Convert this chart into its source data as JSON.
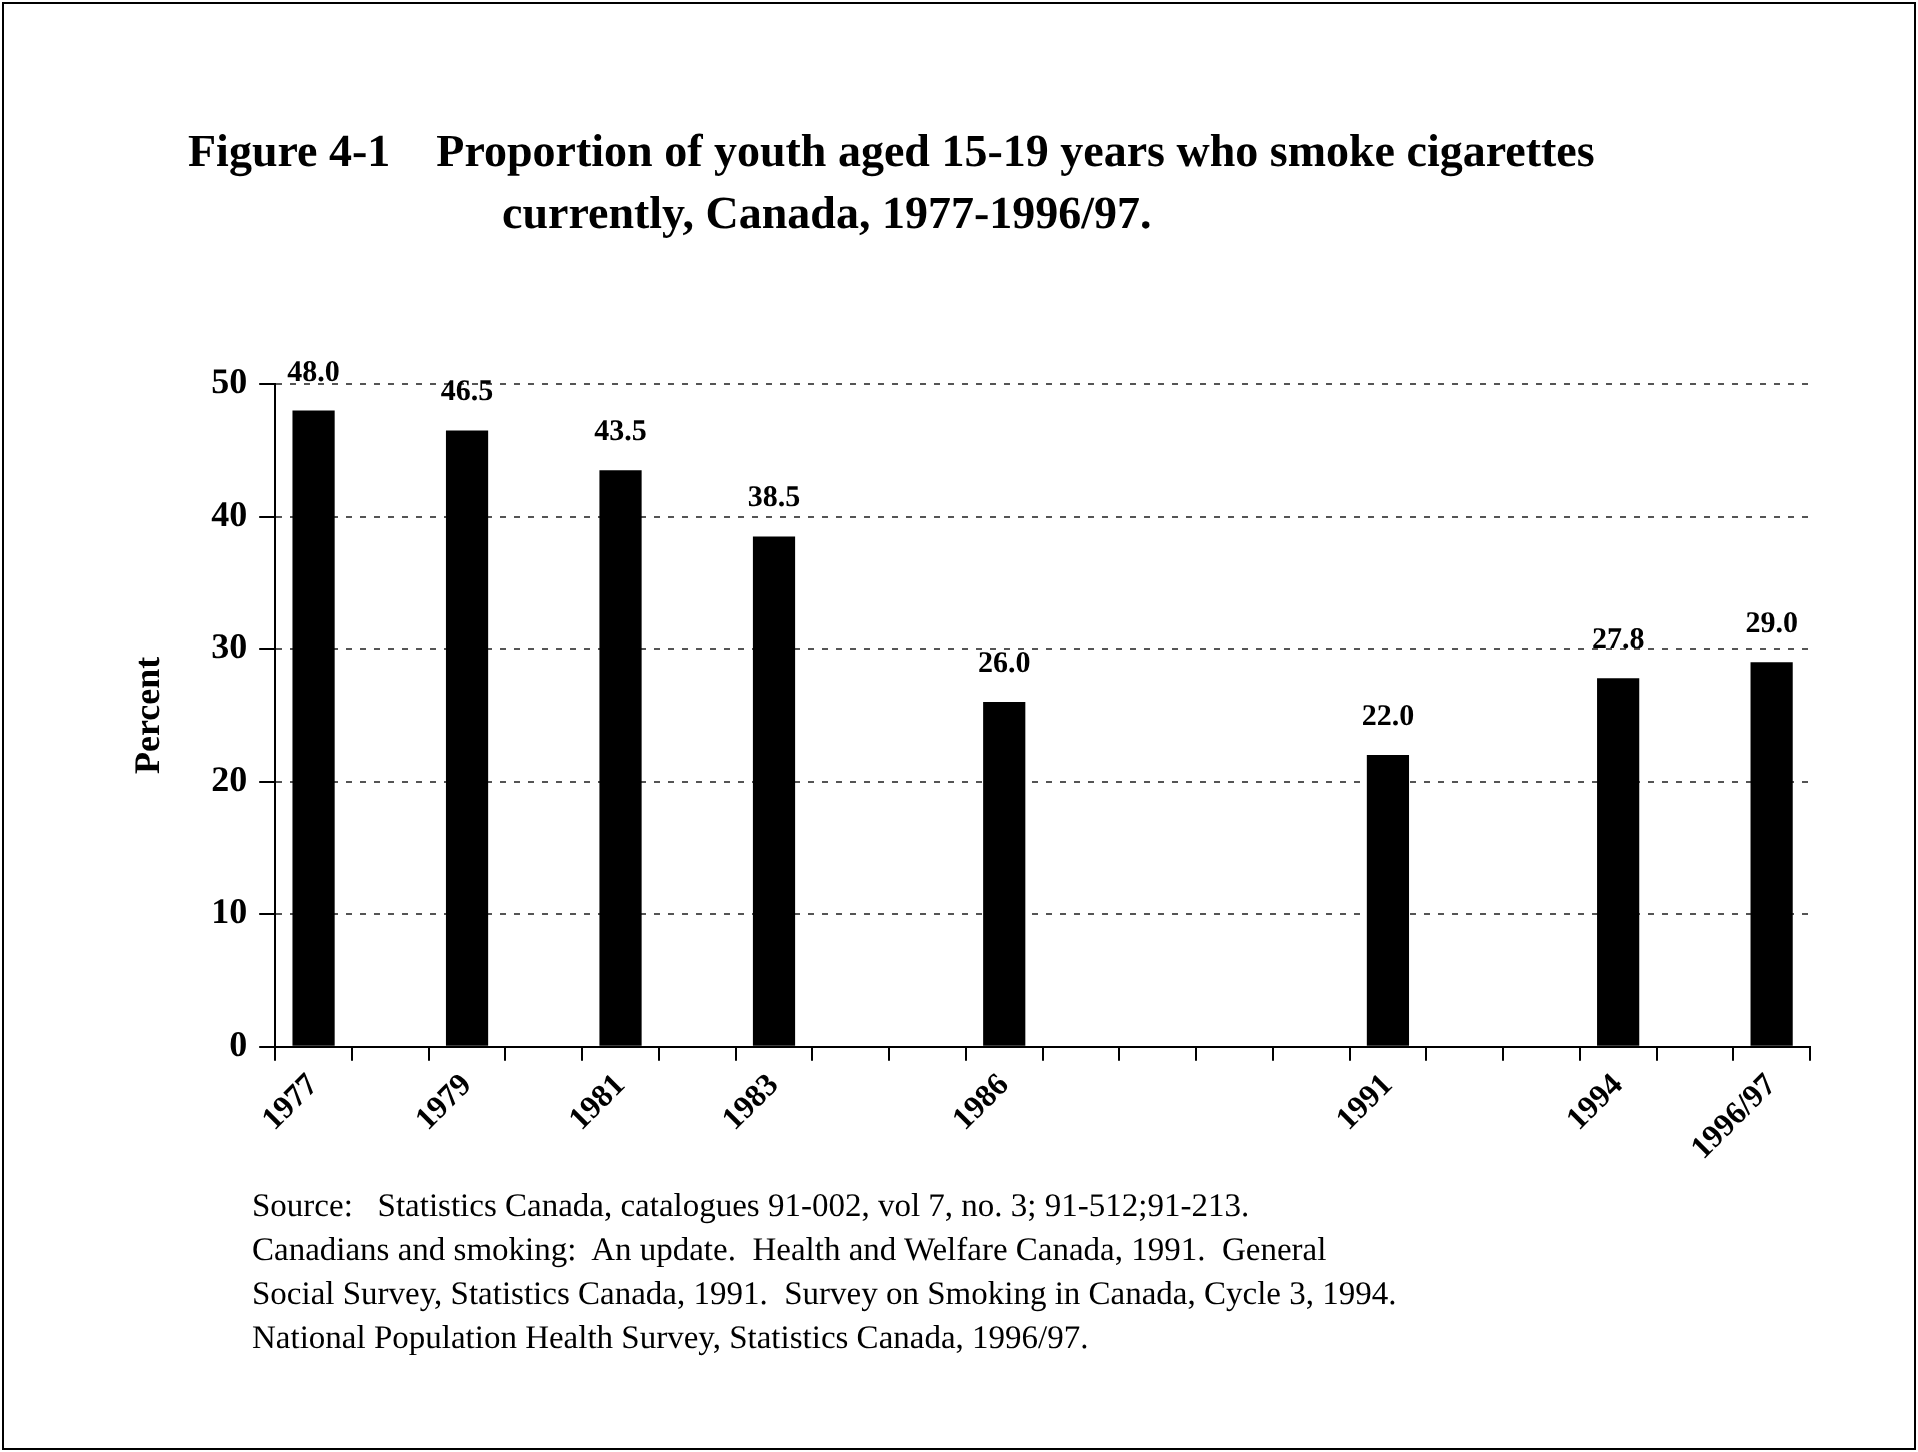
{
  "chart_data": {
    "type": "bar",
    "title": "Figure 4-1    Proportion of youth aged 15-19 years who smoke cigarettes currently, Canada, 1977-1996/97.",
    "ylabel": "Percent",
    "categories": [
      "1977",
      null,
      "1979",
      null,
      "1981",
      null,
      "1983",
      null,
      null,
      "1986",
      null,
      null,
      null,
      null,
      "1991",
      null,
      null,
      "1994",
      null,
      "1996/97"
    ],
    "values": [
      48.0,
      null,
      46.5,
      null,
      43.5,
      null,
      38.5,
      null,
      null,
      26.0,
      null,
      null,
      null,
      null,
      22.0,
      null,
      null,
      27.8,
      null,
      29.0
    ],
    "color": "#000000",
    "ylim": [
      0,
      50
    ],
    "yticks": [
      0,
      10,
      20,
      30,
      40,
      50
    ],
    "grid": "y",
    "value_labels": [
      "48.0",
      null,
      "46.5",
      null,
      "43.5",
      null,
      "38.5",
      null,
      null,
      "26.0",
      null,
      null,
      null,
      null,
      "22.0",
      null,
      null,
      "27.8",
      null,
      "29.0"
    ],
    "annotations": [
      "Source:   Statistics Canada, catalogues 91-002, vol 7, no. 3; 91-512;91-213.\nCanadians and smoking:  An update.  Health and Welfare Canada, 1991.  General\nSocial Survey, Statistics Canada, 1991.  Survey on Smoking in Canada, Cycle 3, 1994.\nNational Population Health Survey, Statistics Canada, 1996/97."
    ]
  }
}
